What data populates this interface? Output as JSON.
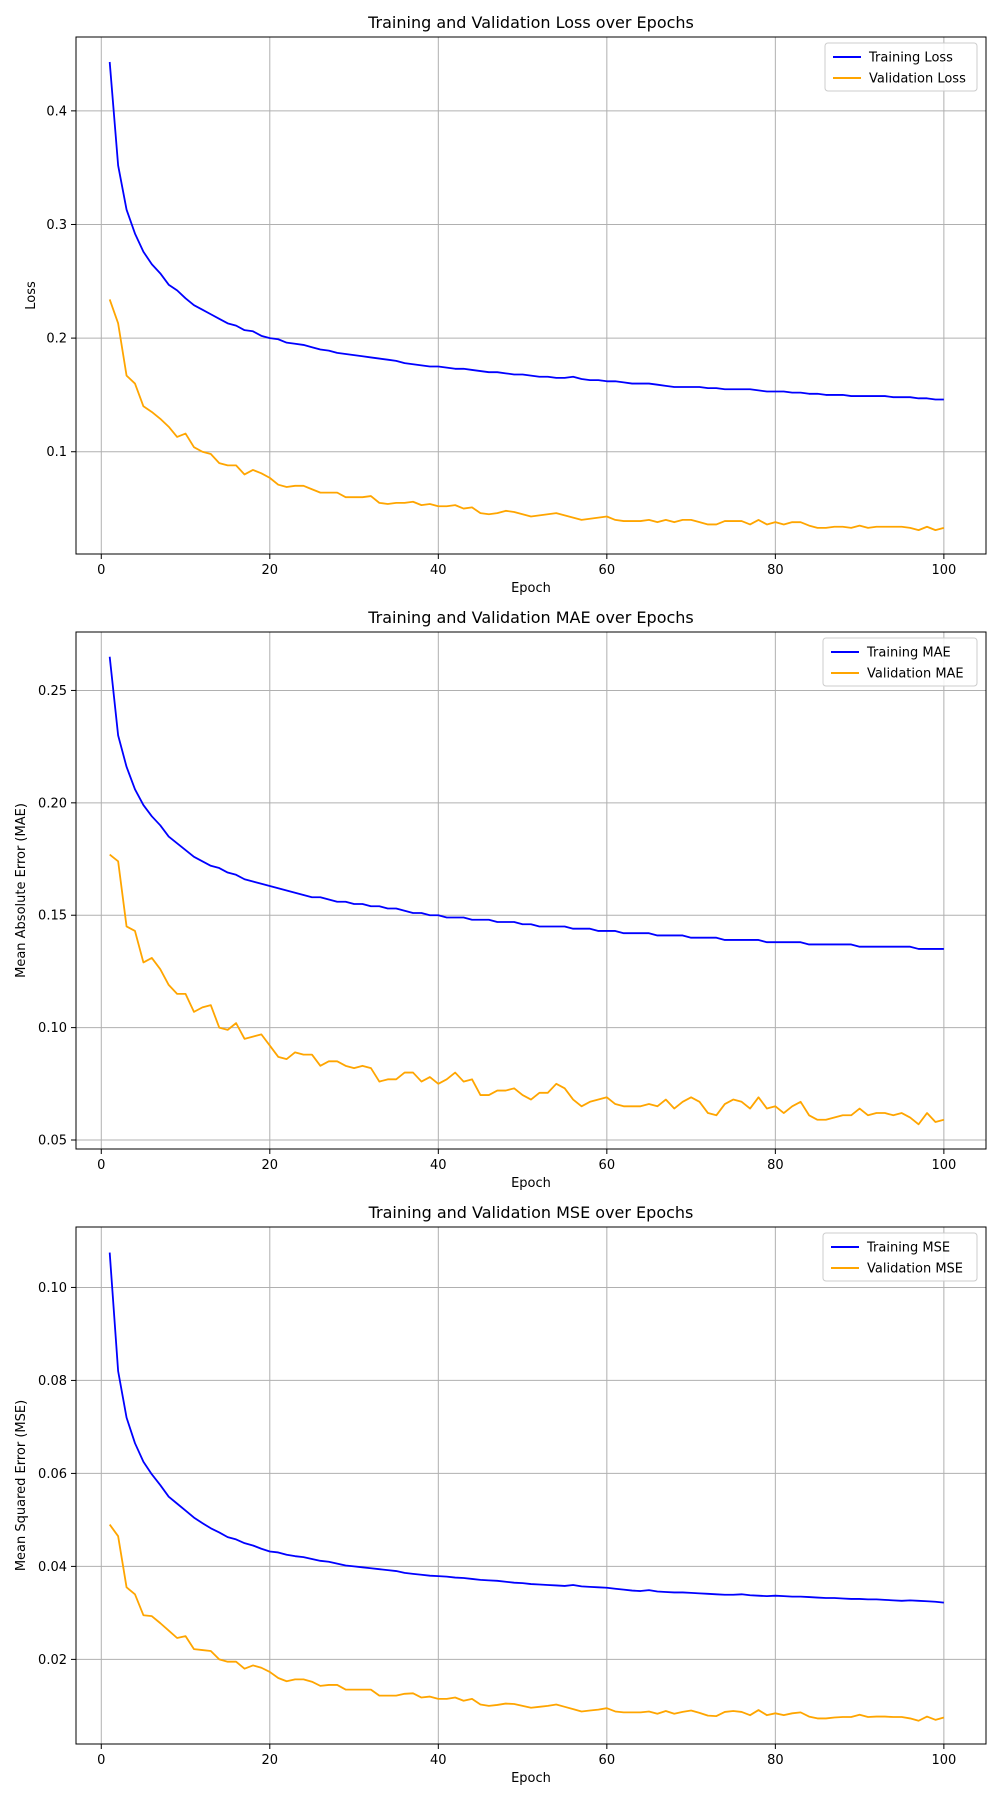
{
  "colors": {
    "training": "#0000ff",
    "validation": "#ffa500",
    "grid": "#b0b0b0",
    "axis": "#000000"
  },
  "chart_data": [
    {
      "type": "line",
      "title": "Training and Validation Loss over Epochs",
      "xlabel": "Epoch",
      "ylabel": "Loss",
      "xlim": [
        -3,
        105
      ],
      "ylim": [
        0.01,
        0.465
      ],
      "xticks": [
        0,
        20,
        40,
        60,
        80,
        100
      ],
      "yticks": [
        0.1,
        0.2,
        0.3,
        0.4
      ],
      "ytick_labels": [
        "0.1",
        "0.2",
        "0.3",
        "0.4"
      ],
      "grid": true,
      "legend": "top-right",
      "x": [
        1,
        2,
        3,
        4,
        5,
        6,
        7,
        8,
        9,
        10,
        11,
        12,
        13,
        14,
        15,
        16,
        17,
        18,
        19,
        20,
        21,
        22,
        23,
        24,
        25,
        26,
        27,
        28,
        29,
        30,
        31,
        32,
        33,
        34,
        35,
        36,
        37,
        38,
        39,
        40,
        41,
        42,
        43,
        44,
        45,
        46,
        47,
        48,
        49,
        50,
        51,
        52,
        53,
        54,
        55,
        56,
        57,
        58,
        59,
        60,
        61,
        62,
        63,
        64,
        65,
        66,
        67,
        68,
        69,
        70,
        71,
        72,
        73,
        74,
        75,
        76,
        77,
        78,
        79,
        80,
        81,
        82,
        83,
        84,
        85,
        86,
        87,
        88,
        89,
        90,
        91,
        92,
        93,
        94,
        95,
        96,
        97,
        98,
        99,
        100
      ],
      "series": [
        {
          "name": "Training Loss",
          "color": "#0000ff",
          "values": [
            0.443,
            0.352,
            0.313,
            0.292,
            0.276,
            0.265,
            0.257,
            0.247,
            0.242,
            0.235,
            0.229,
            0.225,
            0.221,
            0.217,
            0.213,
            0.211,
            0.207,
            0.206,
            0.202,
            0.2,
            0.199,
            0.196,
            0.195,
            0.194,
            0.192,
            0.19,
            0.189,
            0.187,
            0.186,
            0.185,
            0.184,
            0.183,
            0.182,
            0.181,
            0.18,
            0.178,
            0.177,
            0.176,
            0.175,
            0.175,
            0.174,
            0.173,
            0.173,
            0.172,
            0.171,
            0.17,
            0.17,
            0.169,
            0.168,
            0.168,
            0.167,
            0.166,
            0.166,
            0.165,
            0.165,
            0.166,
            0.164,
            0.163,
            0.163,
            0.162,
            0.162,
            0.161,
            0.16,
            0.16,
            0.16,
            0.159,
            0.158,
            0.157,
            0.157,
            0.157,
            0.157,
            0.156,
            0.156,
            0.155,
            0.155,
            0.155,
            0.155,
            0.154,
            0.153,
            0.153,
            0.153,
            0.152,
            0.152,
            0.151,
            0.151,
            0.15,
            0.15,
            0.15,
            0.149,
            0.149,
            0.149,
            0.149,
            0.149,
            0.148,
            0.148,
            0.148,
            0.147,
            0.147,
            0.146,
            0.146
          ]
        },
        {
          "name": "Validation Loss",
          "color": "#ffa500",
          "values": [
            0.234,
            0.213,
            0.167,
            0.16,
            0.14,
            0.135,
            0.129,
            0.122,
            0.113,
            0.116,
            0.104,
            0.1,
            0.098,
            0.09,
            0.088,
            0.088,
            0.08,
            0.084,
            0.081,
            0.077,
            0.071,
            0.069,
            0.07,
            0.07,
            0.067,
            0.064,
            0.064,
            0.064,
            0.06,
            0.06,
            0.06,
            0.061,
            0.055,
            0.054,
            0.055,
            0.055,
            0.056,
            0.053,
            0.054,
            0.052,
            0.052,
            0.053,
            0.05,
            0.051,
            0.046,
            0.045,
            0.046,
            0.048,
            0.047,
            0.045,
            0.043,
            0.044,
            0.045,
            0.046,
            0.044,
            0.042,
            0.04,
            0.041,
            0.042,
            0.043,
            0.04,
            0.039,
            0.039,
            0.039,
            0.04,
            0.038,
            0.04,
            0.038,
            0.04,
            0.04,
            0.038,
            0.036,
            0.036,
            0.039,
            0.039,
            0.039,
            0.036,
            0.04,
            0.036,
            0.038,
            0.036,
            0.038,
            0.038,
            0.035,
            0.033,
            0.033,
            0.034,
            0.034,
            0.033,
            0.035,
            0.033,
            0.034,
            0.034,
            0.034,
            0.034,
            0.033,
            0.031,
            0.034,
            0.031,
            0.033
          ]
        }
      ]
    },
    {
      "type": "line",
      "title": "Training and Validation MAE over Epochs",
      "xlabel": "Epoch",
      "ylabel": "Mean Absolute Error (MAE)",
      "xlim": [
        -3,
        105
      ],
      "ylim": [
        0.046,
        0.276
      ],
      "xticks": [
        0,
        20,
        40,
        60,
        80,
        100
      ],
      "yticks": [
        0.05,
        0.1,
        0.15,
        0.2,
        0.25
      ],
      "ytick_labels": [
        "0.05",
        "0.10",
        "0.15",
        "0.20",
        "0.25"
      ],
      "grid": true,
      "legend": "top-right",
      "x": [
        1,
        2,
        3,
        4,
        5,
        6,
        7,
        8,
        9,
        10,
        11,
        12,
        13,
        14,
        15,
        16,
        17,
        18,
        19,
        20,
        21,
        22,
        23,
        24,
        25,
        26,
        27,
        28,
        29,
        30,
        31,
        32,
        33,
        34,
        35,
        36,
        37,
        38,
        39,
        40,
        41,
        42,
        43,
        44,
        45,
        46,
        47,
        48,
        49,
        50,
        51,
        52,
        53,
        54,
        55,
        56,
        57,
        58,
        59,
        60,
        61,
        62,
        63,
        64,
        65,
        66,
        67,
        68,
        69,
        70,
        71,
        72,
        73,
        74,
        75,
        76,
        77,
        78,
        79,
        80,
        81,
        82,
        83,
        84,
        85,
        86,
        87,
        88,
        89,
        90,
        91,
        92,
        93,
        94,
        95,
        96,
        97,
        98,
        99,
        100
      ],
      "series": [
        {
          "name": "Training MAE",
          "color": "#0000ff",
          "values": [
            0.265,
            0.23,
            0.216,
            0.206,
            0.199,
            0.194,
            0.19,
            0.185,
            0.182,
            0.179,
            0.176,
            0.174,
            0.172,
            0.171,
            0.169,
            0.168,
            0.166,
            0.165,
            0.164,
            0.163,
            0.162,
            0.161,
            0.16,
            0.159,
            0.158,
            0.158,
            0.157,
            0.156,
            0.156,
            0.155,
            0.155,
            0.154,
            0.154,
            0.153,
            0.153,
            0.152,
            0.151,
            0.151,
            0.15,
            0.15,
            0.149,
            0.149,
            0.149,
            0.148,
            0.148,
            0.148,
            0.147,
            0.147,
            0.147,
            0.146,
            0.146,
            0.145,
            0.145,
            0.145,
            0.145,
            0.144,
            0.144,
            0.144,
            0.143,
            0.143,
            0.143,
            0.142,
            0.142,
            0.142,
            0.142,
            0.141,
            0.141,
            0.141,
            0.141,
            0.14,
            0.14,
            0.14,
            0.14,
            0.139,
            0.139,
            0.139,
            0.139,
            0.139,
            0.138,
            0.138,
            0.138,
            0.138,
            0.138,
            0.137,
            0.137,
            0.137,
            0.137,
            0.137,
            0.137,
            0.136,
            0.136,
            0.136,
            0.136,
            0.136,
            0.136,
            0.136,
            0.135,
            0.135,
            0.135,
            0.135
          ]
        },
        {
          "name": "Validation MAE",
          "color": "#ffa500",
          "values": [
            0.177,
            0.174,
            0.145,
            0.143,
            0.129,
            0.131,
            0.126,
            0.119,
            0.115,
            0.115,
            0.107,
            0.109,
            0.11,
            0.1,
            0.099,
            0.102,
            0.095,
            0.096,
            0.097,
            0.092,
            0.087,
            0.086,
            0.089,
            0.088,
            0.088,
            0.083,
            0.085,
            0.085,
            0.083,
            0.082,
            0.083,
            0.082,
            0.076,
            0.077,
            0.077,
            0.08,
            0.08,
            0.076,
            0.078,
            0.075,
            0.077,
            0.08,
            0.076,
            0.077,
            0.07,
            0.07,
            0.072,
            0.072,
            0.073,
            0.07,
            0.068,
            0.071,
            0.071,
            0.075,
            0.073,
            0.068,
            0.065,
            0.067,
            0.068,
            0.069,
            0.066,
            0.065,
            0.065,
            0.065,
            0.066,
            0.065,
            0.068,
            0.064,
            0.067,
            0.069,
            0.067,
            0.062,
            0.061,
            0.066,
            0.068,
            0.067,
            0.064,
            0.069,
            0.064,
            0.065,
            0.062,
            0.065,
            0.067,
            0.061,
            0.059,
            0.059,
            0.06,
            0.061,
            0.061,
            0.064,
            0.061,
            0.062,
            0.062,
            0.061,
            0.062,
            0.06,
            0.057,
            0.062,
            0.058,
            0.059
          ]
        }
      ]
    },
    {
      "type": "line",
      "title": "Training and Validation MSE over Epochs",
      "xlabel": "Epoch",
      "ylabel": "Mean Squared Error (MSE)",
      "xlim": [
        -3,
        105
      ],
      "ylim": [
        0.0018,
        0.113
      ],
      "xticks": [
        0,
        20,
        40,
        60,
        80,
        100
      ],
      "yticks": [
        0.02,
        0.04,
        0.06,
        0.08,
        0.1
      ],
      "ytick_labels": [
        "0.02",
        "0.04",
        "0.06",
        "0.08",
        "0.10"
      ],
      "grid": true,
      "legend": "top-right",
      "x": [
        1,
        2,
        3,
        4,
        5,
        6,
        7,
        8,
        9,
        10,
        11,
        12,
        13,
        14,
        15,
        16,
        17,
        18,
        19,
        20,
        21,
        22,
        23,
        24,
        25,
        26,
        27,
        28,
        29,
        30,
        31,
        32,
        33,
        34,
        35,
        36,
        37,
        38,
        39,
        40,
        41,
        42,
        43,
        44,
        45,
        46,
        47,
        48,
        49,
        50,
        51,
        52,
        53,
        54,
        55,
        56,
        57,
        58,
        59,
        60,
        61,
        62,
        63,
        64,
        65,
        66,
        67,
        68,
        69,
        70,
        71,
        72,
        73,
        74,
        75,
        76,
        77,
        78,
        79,
        80,
        81,
        82,
        83,
        84,
        85,
        86,
        87,
        88,
        89,
        90,
        91,
        92,
        93,
        94,
        95,
        96,
        97,
        98,
        99,
        100
      ],
      "series": [
        {
          "name": "Training MSE",
          "color": "#0000ff",
          "values": [
            0.1075,
            0.082,
            0.072,
            0.0665,
            0.0625,
            0.0598,
            0.0575,
            0.055,
            0.0535,
            0.052,
            0.0505,
            0.0493,
            0.0482,
            0.0473,
            0.0463,
            0.0458,
            0.045,
            0.0445,
            0.0438,
            0.0432,
            0.043,
            0.0425,
            0.0422,
            0.042,
            0.0416,
            0.0412,
            0.041,
            0.0406,
            0.0402,
            0.04,
            0.0398,
            0.0396,
            0.0394,
            0.0392,
            0.039,
            0.0386,
            0.0384,
            0.0382,
            0.038,
            0.0379,
            0.0378,
            0.0376,
            0.0375,
            0.0373,
            0.0371,
            0.037,
            0.0369,
            0.0367,
            0.0365,
            0.0364,
            0.0362,
            0.0361,
            0.036,
            0.0359,
            0.0358,
            0.036,
            0.0357,
            0.0356,
            0.0355,
            0.0354,
            0.0352,
            0.035,
            0.0348,
            0.0347,
            0.0349,
            0.0346,
            0.0345,
            0.0344,
            0.0344,
            0.0343,
            0.0342,
            0.0341,
            0.034,
            0.0339,
            0.0339,
            0.034,
            0.0338,
            0.0337,
            0.0336,
            0.0337,
            0.0336,
            0.0335,
            0.0335,
            0.0334,
            0.0333,
            0.0332,
            0.0332,
            0.0331,
            0.033,
            0.033,
            0.0329,
            0.0329,
            0.0328,
            0.0327,
            0.0326,
            0.0327,
            0.0326,
            0.0325,
            0.0324,
            0.0322
          ]
        },
        {
          "name": "Validation MSE",
          "color": "#ffa500",
          "values": [
            0.049,
            0.0465,
            0.0355,
            0.034,
            0.0295,
            0.0293,
            0.0278,
            0.0262,
            0.0246,
            0.025,
            0.0222,
            0.022,
            0.0218,
            0.02,
            0.0195,
            0.0195,
            0.018,
            0.0187,
            0.0182,
            0.0173,
            0.016,
            0.0153,
            0.0157,
            0.0157,
            0.0152,
            0.0143,
            0.0145,
            0.0145,
            0.0135,
            0.0135,
            0.0135,
            0.0135,
            0.0122,
            0.0122,
            0.0122,
            0.0126,
            0.0127,
            0.0118,
            0.012,
            0.0115,
            0.0115,
            0.0118,
            0.0111,
            0.0115,
            0.0103,
            0.01,
            0.0102,
            0.0105,
            0.0104,
            0.01,
            0.0096,
            0.0098,
            0.01,
            0.0103,
            0.0098,
            0.0093,
            0.0088,
            0.009,
            0.0092,
            0.0095,
            0.0088,
            0.0086,
            0.0086,
            0.0086,
            0.0088,
            0.0083,
            0.0089,
            0.0083,
            0.0087,
            0.009,
            0.0085,
            0.0079,
            0.0078,
            0.0087,
            0.0089,
            0.0087,
            0.008,
            0.0091,
            0.008,
            0.0084,
            0.008,
            0.0084,
            0.0086,
            0.0077,
            0.0073,
            0.0073,
            0.0075,
            0.0076,
            0.0076,
            0.0081,
            0.0076,
            0.0077,
            0.0077,
            0.0076,
            0.0076,
            0.0073,
            0.0068,
            0.0077,
            0.007,
            0.0075
          ]
        }
      ]
    }
  ]
}
